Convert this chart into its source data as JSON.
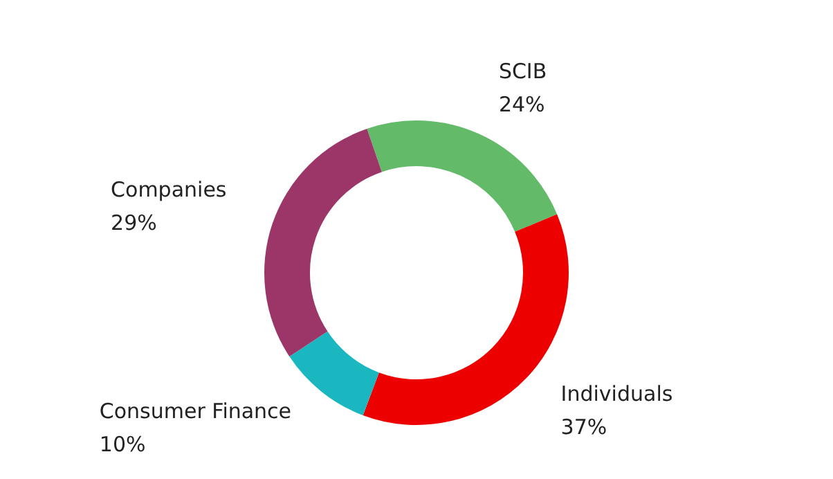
{
  "chart_data": {
    "type": "donut",
    "categories": [
      "SCIB",
      "Individuals",
      "Consumer Finance",
      "Companies"
    ],
    "values": [
      24,
      37,
      10,
      29
    ],
    "colors": [
      "#63bb6a",
      "#ec0000",
      "#1bb7c0",
      "#9c3668"
    ],
    "value_labels": [
      "24%",
      "37%",
      "10%",
      "29%"
    ],
    "legend": false
  }
}
